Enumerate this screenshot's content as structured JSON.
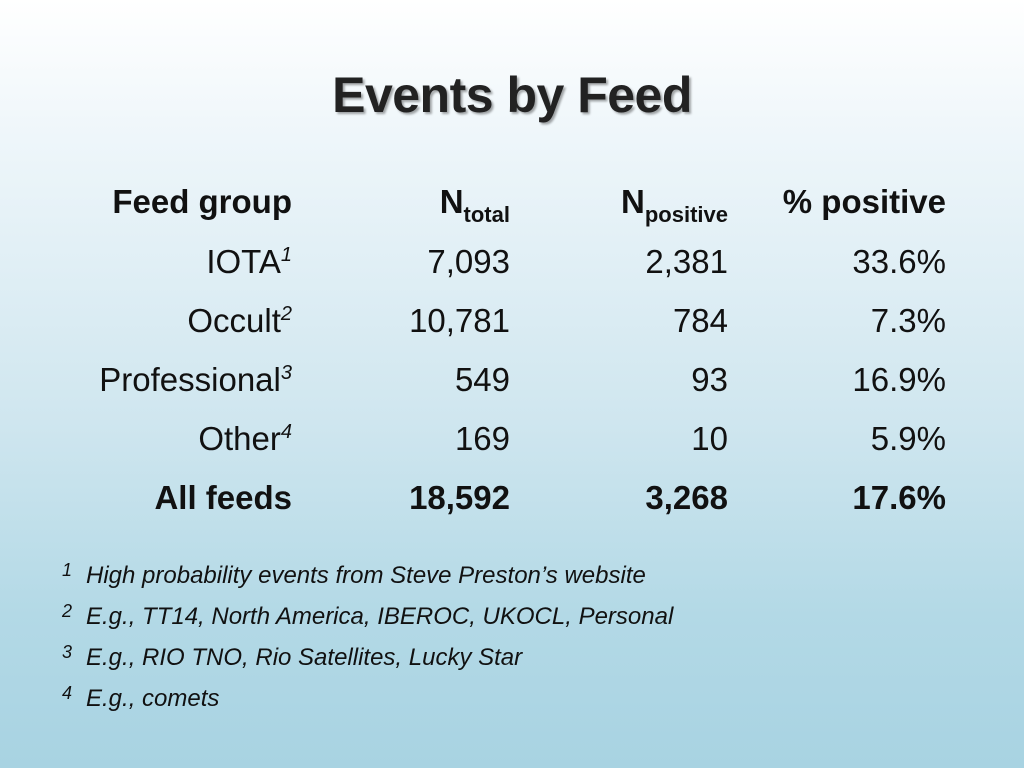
{
  "title": "Events by Feed",
  "table": {
    "headers": {
      "feed_group": "Feed group",
      "n_total_main": "N",
      "n_total_sub": "total",
      "n_positive_main": "N",
      "n_positive_sub": "positive",
      "pct_positive": "% positive"
    },
    "rows": [
      {
        "group": "IOTA",
        "note": "1",
        "n_total": "7,093",
        "n_positive": "2,381",
        "pct": "33.6%"
      },
      {
        "group": "Occult",
        "note": "2",
        "n_total": "10,781",
        "n_positive": "784",
        "pct": "7.3%"
      },
      {
        "group": "Professional",
        "note": "3",
        "n_total": "549",
        "n_positive": "93",
        "pct": "16.9%"
      },
      {
        "group": "Other",
        "note": "4",
        "n_total": "169",
        "n_positive": "10",
        "pct": "5.9%"
      }
    ],
    "total": {
      "group": "All feeds",
      "n_total": "18,592",
      "n_positive": "3,268",
      "pct": "17.6%"
    }
  },
  "footnotes": [
    {
      "num": "1",
      "text": "High probability events from Steve Preston’s website"
    },
    {
      "num": "2",
      "text": "E.g., TT14, North America, IBEROC, UKOCL, Personal"
    },
    {
      "num": "3",
      "text": "E.g., RIO TNO, Rio Satellites, Lucky Star"
    },
    {
      "num": "4",
      "text": "E.g., comets"
    }
  ]
}
